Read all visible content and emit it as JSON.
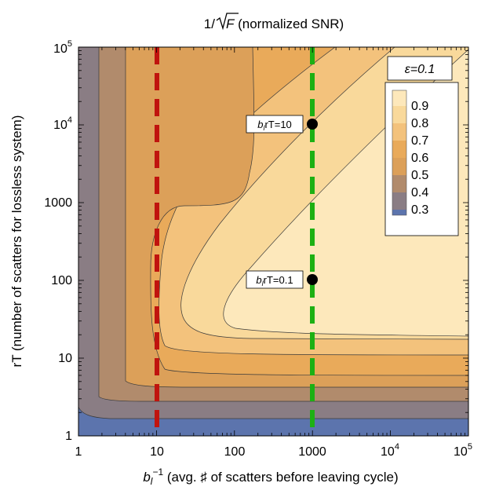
{
  "chart_data": {
    "type": "heatmap",
    "title": "1/√F (normalized SNR)",
    "title_prefix": "1/",
    "title_radicand": "F",
    "title_suffix": " (normalized SNR)",
    "xlabel_var": "b",
    "xlabel_sub": "l",
    "xlabel_sup": "−1",
    "xlabel_text": " (avg. ♯ of scatters before leaving cycle)",
    "ylabel": "rT (number of scatters for lossless system)",
    "x_scale": "log",
    "y_scale": "log",
    "xlim": [
      1,
      100000
    ],
    "ylim": [
      1,
      100000
    ],
    "x_ticks": [
      {
        "value": 1,
        "label": "1"
      },
      {
        "value": 10,
        "label": "10"
      },
      {
        "value": 100,
        "label": "100"
      },
      {
        "value": 1000,
        "label": "1000"
      },
      {
        "value": 10000,
        "base": "10",
        "exp": "4"
      },
      {
        "value": 100000,
        "base": "10",
        "exp": "5"
      }
    ],
    "y_ticks": [
      {
        "value": 1,
        "label": "1"
      },
      {
        "value": 10,
        "label": "10"
      },
      {
        "value": 100,
        "label": "100"
      },
      {
        "value": 1000,
        "label": "1000"
      },
      {
        "value": 10000,
        "base": "10",
        "exp": "4"
      },
      {
        "value": 100000,
        "base": "10",
        "exp": "5"
      }
    ],
    "legend": {
      "title": "ε=0.1",
      "placement": "top-right",
      "levels": [
        "0.9",
        "0.8",
        "0.7",
        "0.6",
        "0.5",
        "0.4",
        "0.3"
      ]
    },
    "colors": {
      "band_lt_0_3": "#5c74ad",
      "band_0_3_0_4": "#8a7d84",
      "band_0_4_0_5": "#b18b6c",
      "band_0_5_0_6": "#dca059",
      "band_0_6_0_7": "#e9aa5a",
      "band_0_7_0_8": "#f3c27c",
      "band_0_8_0_9": "#f9d99b",
      "band_gt_0_9": "#fde8bb",
      "red_line": "#c0140e",
      "green_line": "#1db013"
    },
    "vertical_lines": [
      {
        "x": 10,
        "color": "red",
        "style": "dashed"
      },
      {
        "x": 1000,
        "color": "green",
        "style": "dashed"
      }
    ],
    "annotations": [
      {
        "x": 1000,
        "y": 10000,
        "var": "b",
        "sub": "l",
        "text": "rT=10"
      },
      {
        "x": 1000,
        "y": 100,
        "var": "b",
        "sub": "l",
        "text": "rT=0.1"
      }
    ]
  }
}
